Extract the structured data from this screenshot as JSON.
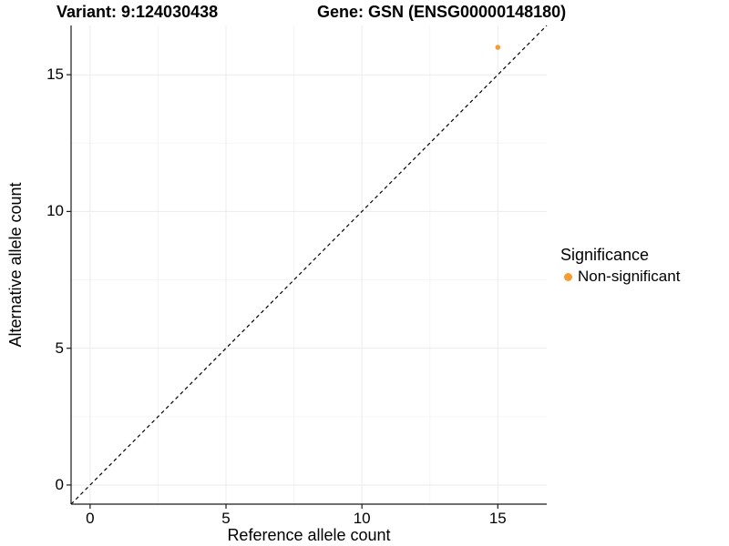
{
  "header": {
    "variant_title": "Variant: 9:124030438",
    "gene_title": "Gene: GSN (ENSG00000148180)"
  },
  "chart_data": {
    "type": "scatter",
    "title": "Variant: 9:124030438    Gene: GSN (ENSG00000148180)",
    "xlabel": "Reference allele count",
    "ylabel": "Alternative allele count",
    "xlim": [
      -0.7,
      16.8
    ],
    "ylim": [
      -0.7,
      16.8
    ],
    "xticks": [
      0,
      5,
      10,
      15
    ],
    "yticks": [
      0,
      5,
      10,
      15
    ],
    "minor_xticks": [
      2.5,
      7.5,
      12.5
    ],
    "minor_yticks": [
      2.5,
      7.5,
      12.5
    ],
    "grid": true,
    "identity_line": {
      "slope": 1,
      "intercept": 0,
      "style": "dashed",
      "color": "#000000"
    },
    "series": [
      {
        "name": "Non-significant",
        "color": "#F79B33",
        "points": [
          {
            "x": 15,
            "y": 16
          }
        ]
      }
    ],
    "legend": {
      "title": "Significance",
      "position": "right",
      "items": [
        {
          "label": "Non-significant",
          "color": "#F79B33"
        }
      ]
    },
    "colors": {
      "background": "#FFFFFF",
      "grid_major": "#EBEBEB",
      "grid_minor": "#F5F5F5",
      "axis_line": "#1A1A1A",
      "text": "#000000"
    }
  }
}
